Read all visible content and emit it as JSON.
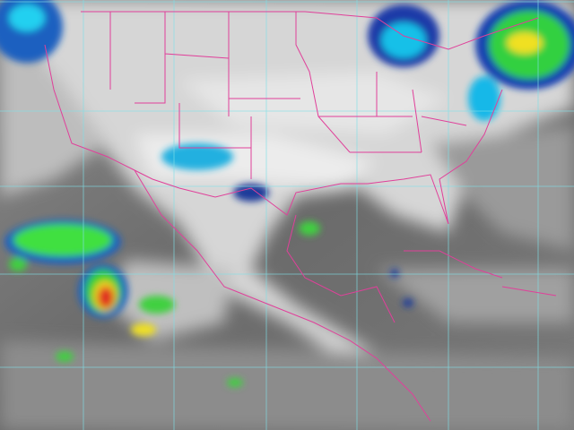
{
  "colors": {
    "ocean_background": "#5a5a5a",
    "land_clear": "#d8d8d8",
    "high_cloud": "#f2f2f2",
    "boundary_lines": "#e0409a",
    "graticule_lines": "#7fe0e8",
    "cold_tops_cyan": "#19c8f0",
    "cold_tops_blue": "#1030a0",
    "cold_tops_green": "#30e030",
    "cold_tops_yellow": "#f0f020",
    "cold_tops_red": "#e02020"
  }
}
